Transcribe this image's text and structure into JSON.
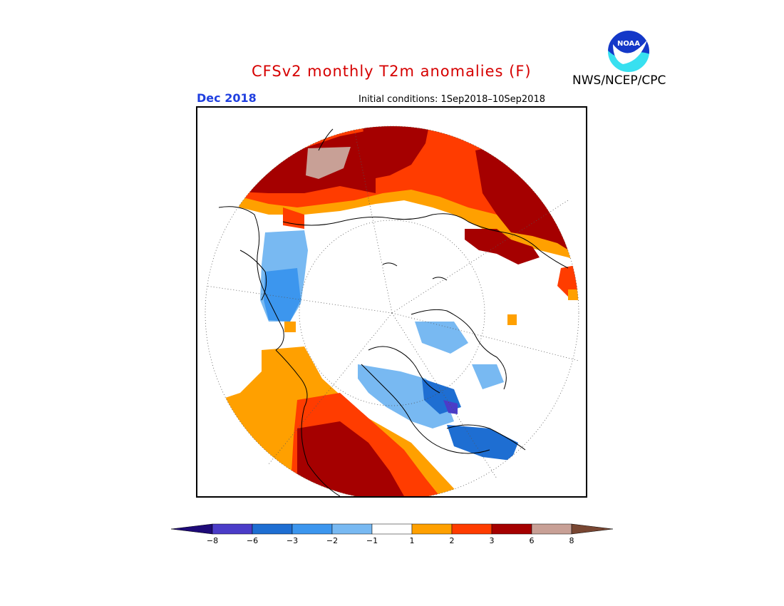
{
  "header": {
    "title": "CFSv2 monthly T2m anomalies (F)",
    "month": "Dec 2018",
    "initial_conditions": "Initial conditions: 1Sep2018–10Sep2018",
    "agency": "NWS/NCEP/CPC",
    "logo_text": "NOAA"
  },
  "map": {
    "projection": "north-polar-stereographic",
    "background_color": "#ffffff",
    "coastline_color": "#000000"
  },
  "colorbar": {
    "colors": [
      "#1e0a78",
      "#4b3cc8",
      "#1e6ed2",
      "#3c96ee",
      "#78b9f2",
      "#ffffff",
      "#ffa000",
      "#ff3c00",
      "#a50000",
      "#c8a096",
      "#784632"
    ],
    "tick_labels": [
      "−8",
      "−6",
      "−3",
      "−2",
      "−1",
      "1",
      "2",
      "3",
      "6",
      "8"
    ]
  }
}
